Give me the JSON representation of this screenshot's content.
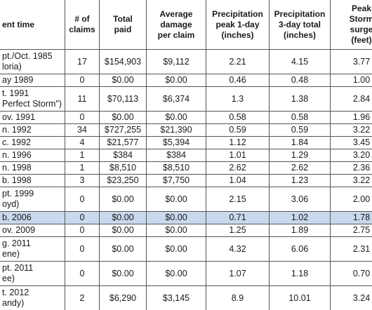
{
  "table": {
    "header": [
      [
        "ent time"
      ],
      [
        "# of",
        "claims"
      ],
      [
        "Total",
        "paid"
      ],
      [
        "Average",
        "damage",
        "per claim"
      ],
      [
        "Precipitation",
        "peak 1-day",
        "(inches)"
      ],
      [
        "Precipitation",
        "3-day total",
        "(inches)"
      ],
      [
        "Peak",
        "Storm",
        "surge",
        "(feet)"
      ]
    ],
    "rows": [
      [
        [
          "pt./Oct. 1985",
          "loria)"
        ],
        "17",
        "$154,903",
        "$9,112",
        "2.21",
        "4.15",
        "3.77"
      ],
      [
        [
          "ay 1989"
        ],
        "0",
        "$0.00",
        "$0.00",
        "0.46",
        "0.48",
        "1.00"
      ],
      [
        [
          "t. 1991",
          "Perfect Storm\")"
        ],
        "11",
        "$70,113",
        "$6,374",
        "1.3",
        "1.38",
        "2.84"
      ],
      [
        [
          "ov. 1991"
        ],
        "0",
        "$0.00",
        "$0.00",
        "0.58",
        "0.58",
        "1.96"
      ],
      [
        [
          "n. 1992"
        ],
        "34",
        "$727,255",
        "$21,390",
        "0.59",
        "0.59",
        "3.22"
      ],
      [
        [
          "c. 1992"
        ],
        "4",
        "$21,577",
        "$5,394",
        "1.12",
        "1.84",
        "3.45"
      ],
      [
        [
          "n. 1996"
        ],
        "1",
        "$384",
        "$384",
        "1.01",
        "1.29",
        "3.20"
      ],
      [
        [
          "n. 1998"
        ],
        "1",
        "$8,510",
        "$8,510",
        "2.62",
        "2.62",
        "2.36"
      ],
      [
        [
          "b. 1998"
        ],
        "3",
        "$23,250",
        "$7,750",
        "1.04",
        "1.23",
        "3.22"
      ],
      [
        [
          "pt. 1999",
          "oyd)"
        ],
        "0",
        "$0.00",
        "$0.00",
        "2.15",
        "3.06",
        "2.00"
      ],
      [
        [
          "b. 2006"
        ],
        "0",
        "$0.00",
        "$0.00",
        "0.71",
        "1.02",
        "1.78"
      ],
      [
        [
          "ov. 2009"
        ],
        "0",
        "$0.00",
        "$0.00",
        "1.25",
        "1.89",
        "2.75"
      ],
      [
        [
          "g. 2011",
          "ene)"
        ],
        "0",
        "$0.00",
        "$0.00",
        "4.32",
        "6.06",
        "2.31"
      ],
      [
        [
          "pt. 2011",
          "ee)"
        ],
        "0",
        "$0.00",
        "$0.00",
        "1.07",
        "1.18",
        "0.70"
      ],
      [
        [
          "t. 2012",
          "andy)"
        ],
        "2",
        "$6,290",
        "$3,145",
        "8.9",
        "10.01",
        "3.24"
      ]
    ],
    "highlighted_row": 10
  }
}
